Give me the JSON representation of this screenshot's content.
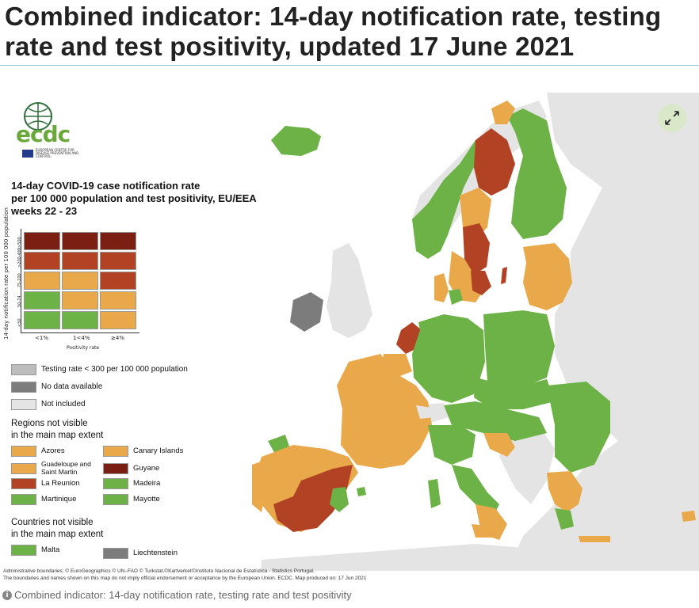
{
  "title": "Combined indicator: 14-day notification rate, testing rate and test positivity, updated 17 June 2021",
  "logo": {
    "name": "ecdc",
    "subtitle": "EUROPEAN CENTRE FOR DISEASE PREVENTION AND CONTROL"
  },
  "legend": {
    "title_lines": [
      "14-day COVID-19 case notification rate",
      "per 100 000 population and test positivity, EU/EEA",
      "weeks 22 - 23"
    ],
    "y_axis_label": "14-day notification rate per 100 000 population",
    "y_ticks": [
      ">500",
      ">200-499",
      "75-200",
      "50-74",
      "<50"
    ],
    "x_ticks": [
      "<1%",
      "1<4%",
      "≥4%"
    ],
    "x_axis_label": "Positivity rate",
    "matrix_colors": [
      [
        "#7b1f12",
        "#7b1f12",
        "#7b1f12"
      ],
      [
        "#b14224",
        "#b14224",
        "#b14224"
      ],
      [
        "#e9a94a",
        "#e9a94a",
        "#b14224"
      ],
      [
        "#6db246",
        "#e9a94a",
        "#e9a94a"
      ],
      [
        "#6db246",
        "#6db246",
        "#e9a94a"
      ]
    ],
    "extra": [
      {
        "label": "Testing rate < 300 per 100 000 population",
        "color": "#bdbdbd"
      },
      {
        "label": "No data available",
        "color": "#7c7c7c"
      },
      {
        "label": "Not included",
        "color": "#e4e4e4"
      }
    ],
    "regions_title_lines": [
      "Regions not visible",
      "in the main map extent"
    ],
    "regions": [
      {
        "label": "Azores",
        "color": "#e9a94a"
      },
      {
        "label": "Canary Islands",
        "color": "#e9a94a"
      },
      {
        "label": "Guadeloupe and Saint Martin",
        "color": "#e9a94a"
      },
      {
        "label": "Guyane",
        "color": "#7b1f12"
      },
      {
        "label": "La Reunion",
        "color": "#b14224"
      },
      {
        "label": "Madeira",
        "color": "#6db246"
      },
      {
        "label": "Martinique",
        "color": "#6db246"
      },
      {
        "label": "Mayotte",
        "color": "#6db246"
      }
    ],
    "countries_title_lines": [
      "Countries not visible",
      "in the main map extent"
    ],
    "countries": [
      {
        "label": "Malta",
        "color": "#6db246"
      },
      {
        "label": "Liechtenstein",
        "color": "#7c7c7c"
      }
    ]
  },
  "map_colors": {
    "green": "#6db246",
    "orange": "#e9a94a",
    "red": "#b14224",
    "dark_red": "#7b1f12",
    "no_data": "#7c7c7c",
    "not_included": "#e4e4e4",
    "sea": "#ffffff"
  },
  "footnote_lines": [
    "Administrative boundaries: © EuroGeographics © UN–FAO © Turkstat.©Kartverket©Instituto Nacional de Estatística - Statistics Portugal.",
    "The boundaries and names shown on this map do not imply official endorsement or acceptance by the European Union. ECDC. Map produced on: 17 Jun 2021"
  ],
  "caption": "Combined indicator: 14-day notification rate, testing rate and test positivity",
  "expand_icon": "expand-arrows-icon",
  "info_icon": "info-icon"
}
